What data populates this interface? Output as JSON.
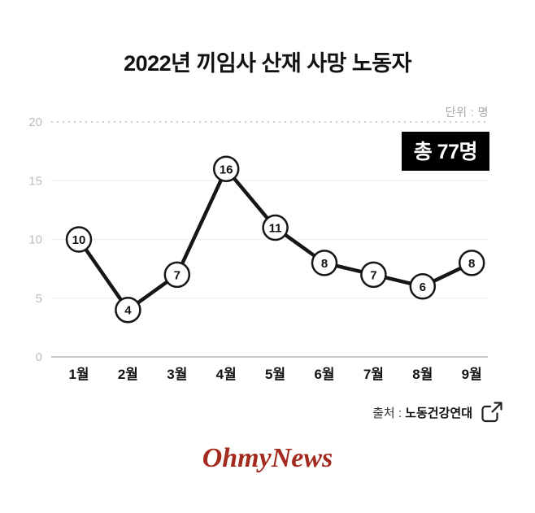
{
  "title": "2022년 끼임사 산재 사망 노동자",
  "unit_label": "단위 : 명",
  "total_badge": "총 77명",
  "source": {
    "prefix": "출처 : ",
    "name": "노동건강연대"
  },
  "footer_logo": "OhmyNews",
  "colors": {
    "line": "#161616",
    "point_fill": "#ffffff",
    "badge_bg": "#000000",
    "badge_text": "#ffffff",
    "axis_text": "#bdbdbd",
    "grid": "#ececec",
    "logo": "#a32a1e"
  },
  "chart_data": {
    "type": "line",
    "title": "2022년 끼임사 산재 사망 노동자",
    "categories": [
      "1월",
      "2월",
      "3월",
      "4월",
      "5월",
      "6월",
      "7월",
      "8월",
      "9월"
    ],
    "values": [
      10,
      4,
      7,
      16,
      11,
      8,
      7,
      6,
      8
    ],
    "total": 77,
    "unit": "명",
    "xlabel": "",
    "ylabel": "명",
    "ylim": [
      0,
      20
    ],
    "yticks": [
      0,
      5,
      10,
      15,
      20
    ],
    "grid": "horizontal",
    "legend": "none",
    "point_labels": true
  }
}
